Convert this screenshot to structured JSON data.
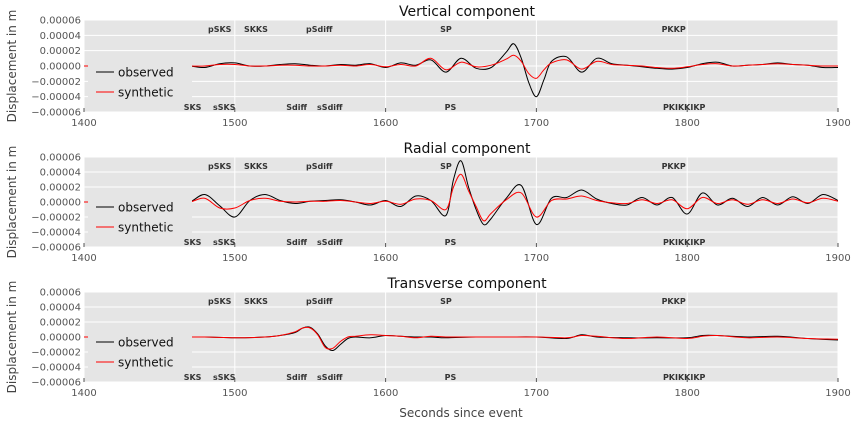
{
  "figure": {
    "xlabel": "Seconds since event",
    "colors": {
      "background": "#e5e5e5",
      "grid": "#ffffff",
      "observed": "#000000",
      "synthetic": "#ff0000",
      "tick_text": "#555555",
      "phase_text": "#333333"
    }
  },
  "chart_data": [
    {
      "type": "line",
      "title": "Vertical component",
      "ylabel": "Displacement in m",
      "xlim": [
        1400,
        1900
      ],
      "ylim": [
        -6e-05,
        6e-05
      ],
      "xticks": [
        1400,
        1500,
        1600,
        1700,
        1800,
        1900
      ],
      "xtick_labels": [
        "1400",
        "1500",
        "1600",
        "1700",
        "1800",
        "1900"
      ],
      "yticks": [
        -6e-05,
        -4e-05,
        -2e-05,
        0,
        2e-05,
        4e-05,
        6e-05
      ],
      "ytick_labels": [
        "−0.00006",
        "−0.00004",
        "−0.00002",
        "0.00000",
        "0.00002",
        "0.00004",
        "0.00006"
      ],
      "grid": true,
      "legend": {
        "position": "bottom-left",
        "entries": [
          "observed",
          "synthetic"
        ]
      },
      "phases_top": [
        {
          "label": "pSKS",
          "t": 1490
        },
        {
          "label": "SKKS",
          "t": 1514
        },
        {
          "label": "pSdiff",
          "t": 1556
        },
        {
          "label": "SP",
          "t": 1640
        },
        {
          "label": "PKKP",
          "t": 1791
        }
      ],
      "phases_bottom": [
        {
          "label": "SKS",
          "t": 1472
        },
        {
          "label": "sSKS",
          "t": 1493
        },
        {
          "label": "Sdiff",
          "t": 1541
        },
        {
          "label": "sSdiff",
          "t": 1563
        },
        {
          "label": "PS",
          "t": 1643
        },
        {
          "label": "PKIKKIKP",
          "t": 1798
        }
      ],
      "series": [
        {
          "name": "observed",
          "x": [
            1400,
            1410,
            1420,
            1430,
            1440,
            1450,
            1460,
            1470,
            1480,
            1490,
            1500,
            1510,
            1520,
            1530,
            1540,
            1550,
            1560,
            1570,
            1580,
            1590,
            1600,
            1610,
            1620,
            1630,
            1640,
            1650,
            1660,
            1670,
            1680,
            1685,
            1690,
            1695,
            1700,
            1705,
            1710,
            1720,
            1730,
            1740,
            1750,
            1760,
            1770,
            1780,
            1790,
            1800,
            1810,
            1820,
            1830,
            1840,
            1850,
            1860,
            1870,
            1880,
            1890,
            1900
          ],
          "y": [
            0,
            0,
            0,
            0,
            0,
            0,
            0,
            0,
            -2e-06,
            3e-06,
            4e-06,
            0,
            0,
            2e-06,
            3e-06,
            1e-06,
            0,
            2e-06,
            1e-06,
            3e-06,
            -2e-06,
            4e-06,
            1e-06,
            8e-06,
            -8e-06,
            1e-05,
            -3e-06,
            -2e-06,
            1.8e-05,
            2.9e-05,
            1e-05,
            -2.2e-05,
            -4e-05,
            -1.8e-05,
            6e-06,
            1.2e-05,
            -8e-06,
            1e-05,
            3e-06,
            1e-06,
            -1e-06,
            -3e-06,
            -4e-06,
            -2e-06,
            3e-06,
            5e-06,
            0,
            1e-06,
            2e-06,
            4e-06,
            2e-06,
            1e-06,
            -2e-06,
            -2e-06
          ]
        },
        {
          "name": "synthetic",
          "x": [
            1400,
            1410,
            1420,
            1430,
            1440,
            1450,
            1460,
            1470,
            1480,
            1490,
            1500,
            1510,
            1520,
            1530,
            1540,
            1550,
            1560,
            1570,
            1580,
            1590,
            1600,
            1610,
            1620,
            1630,
            1640,
            1650,
            1660,
            1670,
            1680,
            1685,
            1690,
            1695,
            1700,
            1705,
            1710,
            1720,
            1730,
            1740,
            1750,
            1760,
            1770,
            1780,
            1790,
            1800,
            1810,
            1820,
            1830,
            1840,
            1850,
            1860,
            1870,
            1880,
            1890,
            1900
          ],
          "y": [
            0,
            0,
            0,
            0,
            0,
            0,
            0,
            0,
            0,
            2e-06,
            2e-06,
            0,
            0,
            1e-06,
            1e-06,
            0,
            0,
            1e-06,
            0,
            2e-06,
            -1e-06,
            2e-06,
            0,
            1e-05,
            -5e-06,
            5e-06,
            -1e-06,
            1e-06,
            9e-06,
            1.4e-05,
            6e-06,
            -1e-05,
            -1.6e-05,
            -5e-06,
            4e-06,
            8e-06,
            -4e-06,
            6e-06,
            2e-06,
            1e-06,
            0,
            -2e-06,
            -3e-06,
            -1e-06,
            2e-06,
            3e-06,
            0,
            1e-06,
            2e-06,
            3e-06,
            2e-06,
            1e-06,
            0,
            0
          ]
        }
      ]
    },
    {
      "type": "line",
      "title": "Radial component",
      "ylabel": "Displacement in m",
      "xlim": [
        1400,
        1900
      ],
      "ylim": [
        -6e-05,
        6e-05
      ],
      "xticks": [
        1400,
        1500,
        1600,
        1700,
        1800,
        1900
      ],
      "xtick_labels": [
        "1400",
        "1500",
        "1600",
        "1700",
        "1800",
        "1900"
      ],
      "yticks": [
        -6e-05,
        -4e-05,
        -2e-05,
        0,
        2e-05,
        4e-05,
        6e-05
      ],
      "ytick_labels": [
        "−0.00006",
        "−0.00004",
        "−0.00002",
        "0.00000",
        "0.00002",
        "0.00004",
        "0.00006"
      ],
      "grid": true,
      "legend": {
        "position": "bottom-left",
        "entries": [
          "observed",
          "synthetic"
        ]
      },
      "phases_top": [
        {
          "label": "pSKS",
          "t": 1490
        },
        {
          "label": "SKKS",
          "t": 1514
        },
        {
          "label": "pSdiff",
          "t": 1556
        },
        {
          "label": "SP",
          "t": 1640
        },
        {
          "label": "PKKP",
          "t": 1791
        }
      ],
      "phases_bottom": [
        {
          "label": "SKS",
          "t": 1472
        },
        {
          "label": "sSKS",
          "t": 1493
        },
        {
          "label": "Sdiff",
          "t": 1541
        },
        {
          "label": "sSdiff",
          "t": 1563
        },
        {
          "label": "PS",
          "t": 1643
        },
        {
          "label": "PKIKKIKP",
          "t": 1798
        }
      ],
      "series": [
        {
          "name": "observed",
          "x": [
            1400,
            1410,
            1420,
            1430,
            1440,
            1450,
            1460,
            1470,
            1480,
            1490,
            1500,
            1510,
            1520,
            1530,
            1540,
            1550,
            1560,
            1570,
            1580,
            1590,
            1600,
            1610,
            1620,
            1630,
            1640,
            1645,
            1650,
            1655,
            1660,
            1665,
            1670,
            1680,
            1690,
            1700,
            1710,
            1720,
            1730,
            1740,
            1750,
            1760,
            1770,
            1780,
            1790,
            1800,
            1810,
            1820,
            1830,
            1840,
            1850,
            1860,
            1870,
            1880,
            1890,
            1900
          ],
          "y": [
            0,
            0,
            0,
            0,
            0,
            0,
            0,
            0,
            1e-05,
            -5e-06,
            -2e-05,
            2e-06,
            1e-05,
            2e-06,
            -2e-06,
            1e-06,
            2e-06,
            3e-06,
            0,
            -4e-06,
            2e-06,
            -6e-06,
            8e-06,
            2e-06,
            -1.8e-05,
            3e-05,
            5.5e-05,
            2e-05,
            -1e-05,
            -3e-05,
            -2.2e-05,
            5e-06,
            2.2e-05,
            -3e-05,
            5e-06,
            6e-06,
            1.6e-05,
            4e-06,
            -2e-06,
            -4e-06,
            6e-06,
            -4e-06,
            6e-06,
            -1.6e-05,
            1.2e-05,
            -4e-06,
            5e-06,
            -6e-06,
            6e-06,
            -4e-06,
            7e-06,
            -2e-06,
            1e-05,
            2e-06
          ]
        },
        {
          "name": "synthetic",
          "x": [
            1400,
            1410,
            1420,
            1430,
            1440,
            1450,
            1460,
            1470,
            1480,
            1490,
            1500,
            1510,
            1520,
            1530,
            1540,
            1550,
            1560,
            1570,
            1580,
            1590,
            1600,
            1610,
            1620,
            1630,
            1640,
            1645,
            1650,
            1655,
            1660,
            1665,
            1670,
            1680,
            1690,
            1700,
            1710,
            1720,
            1730,
            1740,
            1750,
            1760,
            1770,
            1780,
            1790,
            1800,
            1810,
            1820,
            1830,
            1840,
            1850,
            1860,
            1870,
            1880,
            1890,
            1900
          ],
          "y": [
            0,
            0,
            0,
            0,
            0,
            0,
            0,
            0,
            5e-06,
            -8e-06,
            -8e-06,
            2e-06,
            5e-06,
            1e-06,
            0,
            1e-06,
            1e-06,
            2e-06,
            0,
            -2e-06,
            1e-06,
            -3e-06,
            4e-06,
            2e-06,
            -1e-05,
            2e-05,
            3.7e-05,
            1.5e-05,
            -6e-06,
            -2.5e-05,
            -1.5e-05,
            3e-06,
            1.2e-05,
            -2e-05,
            2e-06,
            4e-06,
            8e-06,
            2e-06,
            -1e-06,
            -2e-06,
            3e-06,
            -2e-06,
            3e-06,
            -9e-06,
            6e-06,
            -2e-06,
            3e-06,
            -3e-06,
            3e-06,
            -2e-06,
            4e-06,
            -1e-06,
            5e-06,
            1e-06
          ]
        }
      ]
    },
    {
      "type": "line",
      "title": "Transverse component",
      "ylabel": "Displacement in m",
      "xlabel": "Seconds since event",
      "xlim": [
        1400,
        1900
      ],
      "ylim": [
        -6e-05,
        6e-05
      ],
      "xticks": [
        1400,
        1500,
        1600,
        1700,
        1800,
        1900
      ],
      "xtick_labels": [
        "1400",
        "1500",
        "1600",
        "1700",
        "1800",
        "1900"
      ],
      "yticks": [
        -6e-05,
        -4e-05,
        -2e-05,
        0,
        2e-05,
        4e-05,
        6e-05
      ],
      "ytick_labels": [
        "−0.00006",
        "−0.00004",
        "−0.00002",
        "0.00000",
        "0.00002",
        "0.00004",
        "0.00006"
      ],
      "grid": true,
      "legend": {
        "position": "bottom-left",
        "entries": [
          "observed",
          "synthetic"
        ]
      },
      "phases_top": [
        {
          "label": "pSKS",
          "t": 1490
        },
        {
          "label": "SKKS",
          "t": 1514
        },
        {
          "label": "pSdiff",
          "t": 1556
        },
        {
          "label": "SP",
          "t": 1640
        },
        {
          "label": "PKKP",
          "t": 1791
        }
      ],
      "phases_bottom": [
        {
          "label": "SKS",
          "t": 1472
        },
        {
          "label": "sSKS",
          "t": 1493
        },
        {
          "label": "Sdiff",
          "t": 1541
        },
        {
          "label": "sSdiff",
          "t": 1563
        },
        {
          "label": "PS",
          "t": 1643
        },
        {
          "label": "PKIKKIKP",
          "t": 1798
        }
      ],
      "series": [
        {
          "name": "observed",
          "x": [
            1400,
            1420,
            1440,
            1460,
            1480,
            1500,
            1520,
            1530,
            1540,
            1545,
            1550,
            1555,
            1560,
            1565,
            1570,
            1575,
            1580,
            1590,
            1600,
            1610,
            1620,
            1630,
            1640,
            1660,
            1680,
            1700,
            1720,
            1730,
            1740,
            1760,
            1780,
            1800,
            1810,
            1820,
            1840,
            1860,
            1880,
            1900
          ],
          "y": [
            0,
            0,
            0,
            0,
            0,
            -1e-06,
            0,
            2e-06,
            6e-06,
            1.2e-05,
            1.3e-05,
            4e-06,
            -1.2e-05,
            -1.8e-05,
            -1e-05,
            -2e-06,
            0,
            -1e-06,
            2e-06,
            1e-06,
            0,
            0,
            -1e-06,
            0,
            0,
            0,
            -2e-06,
            3e-06,
            0,
            -1e-06,
            -1e-06,
            -1e-06,
            2e-06,
            2e-06,
            0,
            1e-06,
            -2e-06,
            -4e-06
          ]
        },
        {
          "name": "synthetic",
          "x": [
            1400,
            1420,
            1440,
            1460,
            1480,
            1500,
            1520,
            1530,
            1540,
            1545,
            1550,
            1555,
            1560,
            1565,
            1570,
            1575,
            1580,
            1590,
            1600,
            1610,
            1620,
            1630,
            1640,
            1660,
            1680,
            1700,
            1720,
            1730,
            1740,
            1760,
            1780,
            1800,
            1810,
            1820,
            1840,
            1860,
            1880,
            1900
          ],
          "y": [
            0,
            0,
            0,
            0,
            0,
            -1e-06,
            0,
            2e-06,
            7e-06,
            1.2e-05,
            1.2e-05,
            3e-06,
            -1.4e-05,
            -1.5e-05,
            -6e-06,
            0.0,
            1e-06,
            3e-06,
            2e-06,
            1e-06,
            -1e-06,
            1e-06,
            0,
            0,
            0,
            0,
            -1e-06,
            2e-06,
            1e-06,
            -2e-06,
            0,
            -2e-06,
            1e-06,
            2e-06,
            -1e-06,
            0,
            -2e-06,
            -3e-06
          ]
        }
      ]
    }
  ]
}
